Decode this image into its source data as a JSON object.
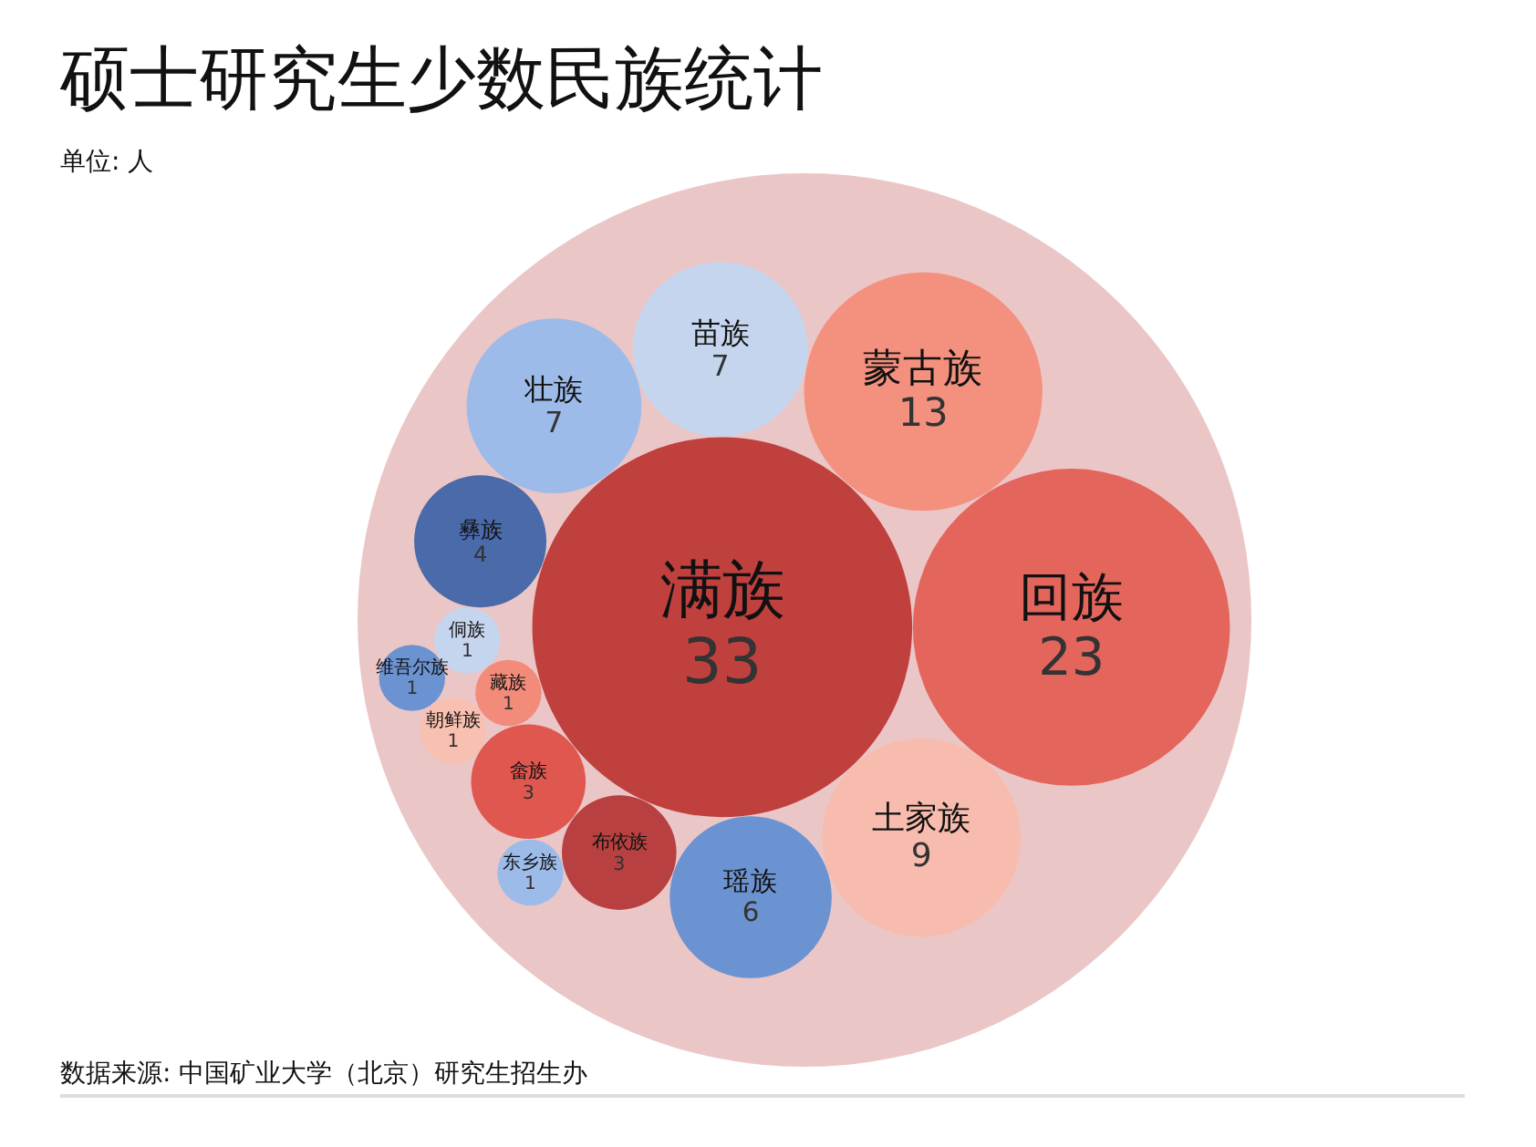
{
  "chart_data": {
    "type": "other",
    "title": "硕士研究生少数民族统计",
    "subtitle": "单位: 人",
    "categories": [
      "满族",
      "回族",
      "蒙古族",
      "土家族",
      "苗族",
      "壮族",
      "瑶族",
      "彝族",
      "布依族",
      "畲族",
      "藏族",
      "侗族",
      "朝鲜族",
      "东乡族",
      "维吾尔族"
    ],
    "values": [
      33,
      23,
      13,
      9,
      7,
      7,
      6,
      4,
      3,
      3,
      1,
      1,
      1,
      1,
      1
    ],
    "colors": [
      "#c0403e",
      "#e4655c",
      "#f4907e",
      "#f7bcad",
      "#c6d5ee",
      "#9dbbe9",
      "#6b93d1",
      "#4a6aaa",
      "#b84040",
      "#e0574f",
      "#f28b7a",
      "#c6d5ee",
      "#f7c0b0",
      "#9dbbe9",
      "#6b93d1"
    ],
    "data_labels": true,
    "annotations": [
      "数据来源: 中国矿业大学（北京）研究生招生办"
    ]
  }
}
